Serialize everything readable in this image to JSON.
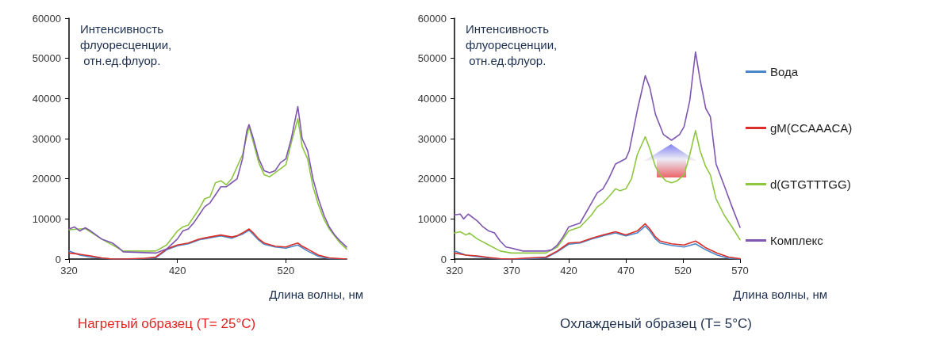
{
  "chart_data": [
    {
      "type": "line",
      "ylabel": "Интенсивность флуоресценции, отн.ед.флуор.",
      "xlabel": "Длина волны, нм",
      "annotations": [
        "Нагретый образец (T= 25°C)"
      ],
      "xlim": [
        320,
        576
      ],
      "xticks": [
        320,
        420,
        520
      ],
      "ylim": [
        0,
        60000
      ],
      "yticks": [
        0,
        10000,
        20000,
        30000,
        40000,
        50000,
        60000
      ],
      "grid": false,
      "legend": false,
      "marker": "none",
      "line_style": "solid",
      "series": [
        {
          "color": "#4a86c8",
          "x": [
            320,
            330,
            340,
            360,
            380,
            400,
            410,
            420,
            430,
            440,
            450,
            460,
            470,
            480,
            486,
            495,
            500,
            510,
            520,
            531,
            540,
            550,
            560,
            576
          ],
          "values": [
            2000,
            1000,
            500,
            0,
            0,
            300,
            2300,
            3300,
            3800,
            4800,
            5300,
            5800,
            5200,
            6200,
            7200,
            4700,
            3700,
            3000,
            2700,
            3500,
            2000,
            700,
            100,
            0
          ]
        },
        {
          "color": "#d9302c",
          "x": [
            320,
            330,
            340,
            350,
            360,
            370,
            380,
            390,
            400,
            405,
            410,
            420,
            430,
            440,
            450,
            460,
            470,
            475,
            480,
            486,
            490,
            495,
            500,
            510,
            520,
            525,
            531,
            535,
            540,
            550,
            560,
            576
          ],
          "values": [
            1500,
            1200,
            800,
            300,
            0,
            0,
            100,
            200,
            500,
            1500,
            2500,
            3500,
            4000,
            5000,
            5500,
            6000,
            5500,
            5800,
            6500,
            7500,
            6500,
            5000,
            4000,
            3200,
            3000,
            3500,
            4000,
            3200,
            2500,
            1000,
            300,
            0
          ]
        },
        {
          "color": "#8dc63f",
          "x": [
            320,
            335,
            350,
            370,
            380,
            400,
            410,
            420,
            425,
            430,
            440,
            445,
            450,
            455,
            460,
            465,
            470,
            480,
            486,
            490,
            495,
            500,
            505,
            510,
            520,
            525,
            531,
            535,
            540,
            545,
            550,
            555,
            560,
            570,
            576
          ],
          "values": [
            7300,
            7600,
            5000,
            2000,
            2000,
            2000,
            3500,
            7000,
            8000,
            8500,
            12500,
            15000,
            15500,
            19000,
            19500,
            18500,
            20000,
            26000,
            33000,
            29000,
            24000,
            21000,
            20500,
            21500,
            23500,
            29000,
            35000,
            28000,
            25000,
            18000,
            13500,
            10000,
            7500,
            4000,
            2500
          ]
        },
        {
          "color": "#7f56b0",
          "x": [
            320,
            325,
            330,
            335,
            340,
            350,
            360,
            365,
            370,
            380,
            400,
            410,
            420,
            425,
            430,
            435,
            440,
            445,
            450,
            455,
            460,
            465,
            470,
            475,
            480,
            484,
            486,
            490,
            495,
            500,
            505,
            510,
            515,
            520,
            525,
            528,
            531,
            535,
            540,
            545,
            550,
            555,
            560,
            565,
            570,
            576
          ],
          "values": [
            7500,
            8000,
            7000,
            7800,
            7000,
            5000,
            4000,
            3000,
            1800,
            1700,
            1500,
            2500,
            5000,
            7000,
            7500,
            9000,
            11000,
            13000,
            14000,
            16000,
            18000,
            18000,
            19000,
            20000,
            25000,
            32000,
            33500,
            30000,
            25000,
            22000,
            21500,
            22000,
            24000,
            25000,
            30000,
            34000,
            38000,
            30000,
            27000,
            20000,
            15000,
            11000,
            8000,
            6000,
            4500,
            3000
          ]
        }
      ]
    },
    {
      "type": "line",
      "ylabel": "Интенсивность флуоресценции, отн.ед.флуор.",
      "xlabel": "Длина волны, нм",
      "annotations": [
        "Охлажденый образец (T= 5°C)"
      ],
      "xlim": [
        320,
        570
      ],
      "xticks": [
        320,
        370,
        420,
        470,
        520,
        570
      ],
      "ylim": [
        0,
        60000
      ],
      "yticks": [
        0,
        10000,
        20000,
        30000,
        40000,
        50000,
        60000
      ],
      "grid": false,
      "legend": "right",
      "marker": "none",
      "line_style": "solid",
      "series": [
        {
          "name": "Вода",
          "color": "#4a86c8",
          "x": [
            320,
            330,
            340,
            360,
            380,
            400,
            410,
            420,
            430,
            440,
            450,
            461,
            470,
            480,
            487,
            491,
            496,
            500,
            510,
            521,
            531,
            540,
            550,
            560,
            570
          ],
          "values": [
            2000,
            1000,
            600,
            0,
            0,
            300,
            1800,
            3700,
            4000,
            5000,
            5800,
            6500,
            5800,
            6500,
            8200,
            7000,
            5000,
            4000,
            3400,
            3000,
            3800,
            2300,
            1000,
            200,
            0
          ]
        },
        {
          "name": "gM(CCAAACA)",
          "color": "#d9302c",
          "x": [
            320,
            330,
            340,
            350,
            360,
            370,
            380,
            400,
            410,
            420,
            430,
            440,
            450,
            461,
            470,
            475,
            480,
            487,
            491,
            496,
            500,
            510,
            521,
            526,
            531,
            535,
            540,
            550,
            560,
            570
          ],
          "values": [
            1500,
            1000,
            800,
            400,
            100,
            0,
            200,
            500,
            2000,
            4000,
            4200,
            5200,
            6000,
            6800,
            6000,
            6500,
            7000,
            8800,
            7500,
            5500,
            4500,
            3800,
            3500,
            4000,
            4500,
            3800,
            2800,
            1500,
            500,
            100
          ]
        },
        {
          "name": "d(GTGTTTGG)",
          "color": "#8dc63f",
          "x": [
            320,
            325,
            330,
            333,
            340,
            350,
            360,
            370,
            400,
            410,
            420,
            425,
            430,
            440,
            445,
            450,
            455,
            461,
            465,
            470,
            475,
            480,
            487,
            491,
            496,
            500,
            505,
            510,
            515,
            521,
            526,
            531,
            535,
            540,
            544,
            549,
            556,
            563,
            570
          ],
          "values": [
            6500,
            6800,
            6000,
            6500,
            5000,
            3500,
            2000,
            1500,
            1500,
            3000,
            7000,
            7500,
            8000,
            11000,
            13000,
            14000,
            15500,
            17500,
            17000,
            17500,
            20000,
            26000,
            30500,
            27500,
            23000,
            21000,
            19500,
            19000,
            19500,
            21000,
            26000,
            32000,
            27000,
            23000,
            21000,
            15000,
            11000,
            8000,
            4800
          ]
        },
        {
          "name": "Комплекс",
          "color": "#7f56b0",
          "x": [
            320,
            325,
            328,
            332,
            340,
            345,
            350,
            355,
            360,
            365,
            370,
            380,
            400,
            405,
            410,
            415,
            420,
            425,
            430,
            435,
            440,
            445,
            450,
            455,
            461,
            470,
            473,
            480,
            487,
            491,
            496,
            503,
            510,
            517,
            521,
            526,
            531,
            535,
            540,
            544,
            549,
            556,
            563,
            570
          ],
          "values": [
            11000,
            11200,
            10000,
            11200,
            9500,
            8000,
            7000,
            6500,
            4500,
            3000,
            2700,
            2000,
            2000,
            2300,
            3500,
            5500,
            8000,
            8500,
            9000,
            11500,
            14000,
            16500,
            17500,
            20000,
            23700,
            25000,
            27000,
            37000,
            45700,
            42700,
            36000,
            31000,
            29600,
            31000,
            33000,
            39500,
            51600,
            44700,
            37500,
            35500,
            23700,
            18400,
            13000,
            7900
          ]
        }
      ]
    }
  ]
}
